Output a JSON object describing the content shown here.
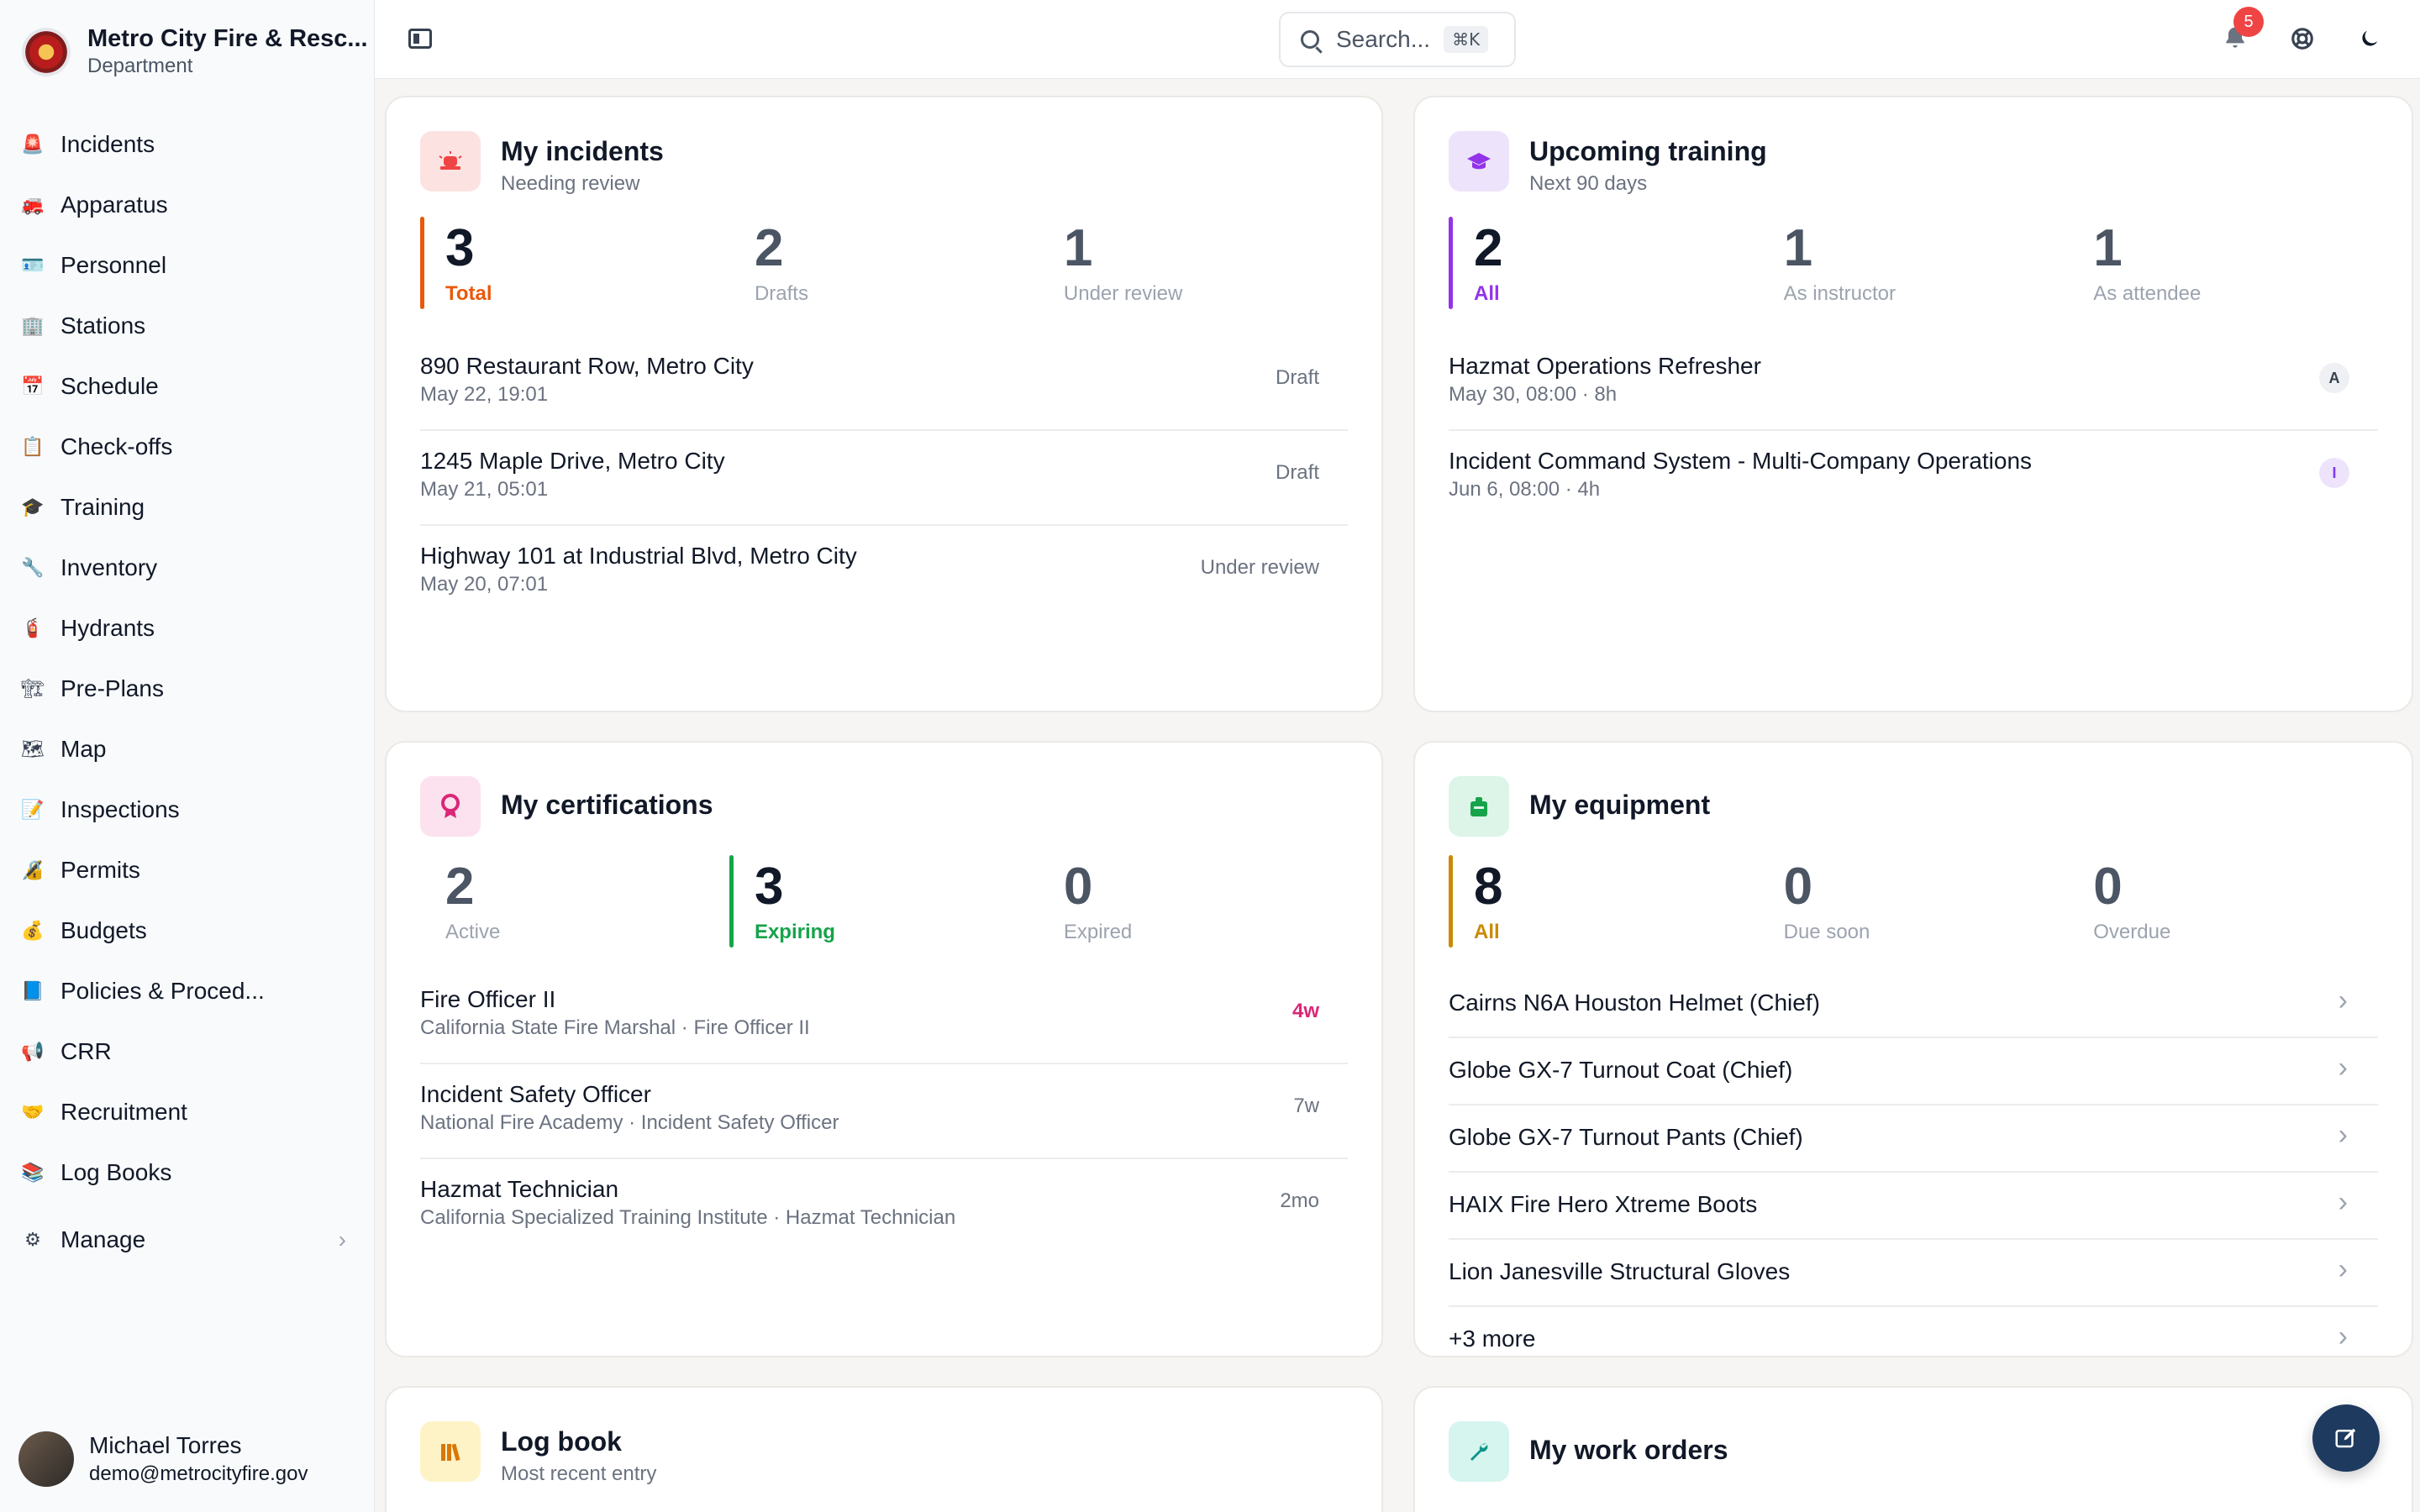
{
  "brand": {
    "name": "Metro City Fire & Resc...",
    "sub": "Department"
  },
  "nav": [
    {
      "label": "Incidents",
      "icon": "siren-icon",
      "glyph": "🚨"
    },
    {
      "label": "Apparatus",
      "icon": "fire-truck-icon",
      "glyph": "🚒"
    },
    {
      "label": "Personnel",
      "icon": "id-card-icon",
      "glyph": "🪪"
    },
    {
      "label": "Stations",
      "icon": "building-icon",
      "glyph": "🏢"
    },
    {
      "label": "Schedule",
      "icon": "calendar-icon",
      "glyph": "📅"
    },
    {
      "label": "Check-offs",
      "icon": "clipboard-check-icon",
      "glyph": "📋"
    },
    {
      "label": "Training",
      "icon": "graduation-cap-icon",
      "glyph": "🎓"
    },
    {
      "label": "Inventory",
      "icon": "wrench-icon",
      "glyph": "🔧"
    },
    {
      "label": "Hydrants",
      "icon": "hydrant-icon",
      "glyph": "🧯"
    },
    {
      "label": "Pre-Plans",
      "icon": "building-plan-icon",
      "glyph": "🏗"
    },
    {
      "label": "Map",
      "icon": "map-icon",
      "glyph": "🗺"
    },
    {
      "label": "Inspections",
      "icon": "clipboard-list-icon",
      "glyph": "📝"
    },
    {
      "label": "Permits",
      "icon": "stamp-icon",
      "glyph": "🔏"
    },
    {
      "label": "Budgets",
      "icon": "money-bag-icon",
      "glyph": "💰"
    },
    {
      "label": "Policies & Proced...",
      "icon": "book-icon",
      "glyph": "📘"
    },
    {
      "label": "CRR",
      "icon": "megaphone-icon",
      "glyph": "📢"
    },
    {
      "label": "Recruitment",
      "icon": "handshake-icon",
      "glyph": "🤝"
    },
    {
      "label": "Log Books",
      "icon": "books-icon",
      "glyph": "📚"
    }
  ],
  "manage": {
    "label": "Manage",
    "icon": "gear-icon",
    "glyph": "⚙"
  },
  "user": {
    "name": "Michael Torres",
    "email": "demo@metrocityfire.gov"
  },
  "search": {
    "placeholder": "Search...",
    "shortcut": "⌘K"
  },
  "notifications": {
    "count": "5"
  },
  "incidents": {
    "title": "My incidents",
    "subtitle": "Needing review",
    "stats": [
      {
        "value": "3",
        "label": "Total"
      },
      {
        "value": "2",
        "label": "Drafts"
      },
      {
        "value": "1",
        "label": "Under review"
      }
    ],
    "rows": [
      {
        "title": "890 Restaurant Row, Metro City",
        "sub": "May 22, 19:01",
        "status": "Draft"
      },
      {
        "title": "1245 Maple Drive, Metro City",
        "sub": "May 21, 05:01",
        "status": "Draft"
      },
      {
        "title": "Highway 101 at Industrial Blvd, Metro City",
        "sub": "May 20, 07:01",
        "status": "Under review"
      }
    ]
  },
  "training": {
    "title": "Upcoming training",
    "subtitle": "Next 90 days",
    "stats": [
      {
        "value": "2",
        "label": "All"
      },
      {
        "value": "1",
        "label": "As instructor"
      },
      {
        "value": "1",
        "label": "As attendee"
      }
    ],
    "rows": [
      {
        "title": "Hazmat Operations Refresher",
        "sub": "May 30, 08:00 · 8h",
        "role": "A"
      },
      {
        "title": "Incident Command System - Multi-Company Operations",
        "sub": "Jun 6, 08:00 · 4h",
        "role": "I"
      }
    ]
  },
  "certifications": {
    "title": "My certifications",
    "stats": [
      {
        "value": "2",
        "label": "Active"
      },
      {
        "value": "3",
        "label": "Expiring"
      },
      {
        "value": "0",
        "label": "Expired"
      }
    ],
    "rows": [
      {
        "title": "Fire Officer II",
        "sub": "California State Fire Marshal · Fire Officer II",
        "due": "4w"
      },
      {
        "title": "Incident Safety Officer",
        "sub": "National Fire Academy · Incident Safety Officer",
        "due": "7w"
      },
      {
        "title": "Hazmat Technician",
        "sub": "California Specialized Training Institute · Hazmat Technician",
        "due": "2mo"
      }
    ]
  },
  "equipment": {
    "title": "My equipment",
    "stats": [
      {
        "value": "8",
        "label": "All"
      },
      {
        "value": "0",
        "label": "Due soon"
      },
      {
        "value": "0",
        "label": "Overdue"
      }
    ],
    "rows": [
      {
        "title": "Cairns N6A Houston Helmet (Chief)"
      },
      {
        "title": "Globe GX-7 Turnout Coat (Chief)"
      },
      {
        "title": "Globe GX-7 Turnout Pants (Chief)"
      },
      {
        "title": "HAIX Fire Hero Xtreme Boots"
      },
      {
        "title": "Lion Janesville Structural Gloves"
      },
      {
        "title": "+3 more"
      }
    ]
  },
  "logbook": {
    "title": "Log book",
    "subtitle": "Most recent entry"
  },
  "workorders": {
    "title": "My work orders"
  },
  "colors": {
    "incidents_accent": "#ea580c",
    "training_accent": "#9333ea",
    "cert_accent": "#16a34a",
    "equipment_accent": "#ca8a04",
    "cert_due": "#db2777"
  }
}
